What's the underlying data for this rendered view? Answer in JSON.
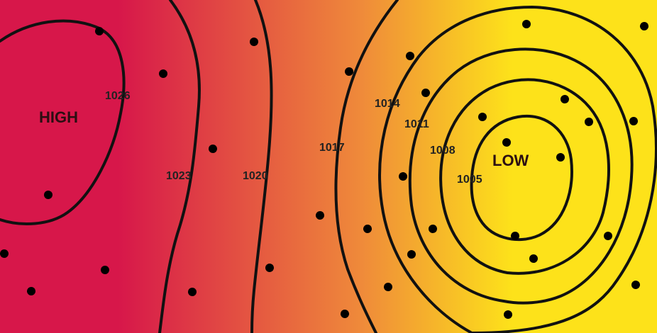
{
  "colors": {
    "high_side": "#d7174a",
    "mid": "#ef8a3a",
    "low_side": "#fde21a",
    "contour": "#111111"
  },
  "centers": {
    "high": "HIGH",
    "low": "LOW"
  },
  "isobars": [
    "1026",
    "1023",
    "1020",
    "1017",
    "1014",
    "1011",
    "1008",
    "1005"
  ],
  "station_symbol": "wind-barb-icon"
}
